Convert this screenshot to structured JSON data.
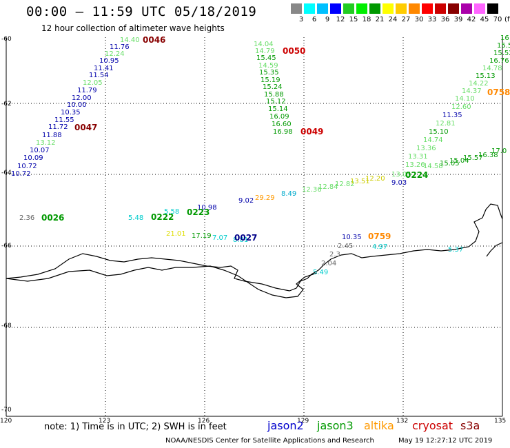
{
  "header": {
    "title": "00:00 – 11:59 UTC 05/18/2019",
    "subtitle": "12 hour collection of altimeter wave heights"
  },
  "color_scale": {
    "labels": [
      "3",
      "6",
      "9",
      "12",
      "15",
      "18",
      "21",
      "24",
      "27",
      "30",
      "33",
      "36",
      "39",
      "42",
      "45",
      "70"
    ],
    "unit": "(ft)",
    "colors": [
      "#888888",
      "#00ffff",
      "#00c0ff",
      "#0000ff",
      "#22cc22",
      "#00ee00",
      "#009900",
      "#ffff00",
      "#ffcc00",
      "#ff8800",
      "#ff0000",
      "#cc0000",
      "#880000",
      "#aa00aa",
      "#ff66ff",
      "#000000"
    ]
  },
  "axes": {
    "lat_labels": [
      "-60",
      "-62",
      "-64",
      "-66",
      "-68",
      "-70"
    ],
    "lon_labels": [
      "120",
      "123",
      "126",
      "129",
      "132",
      "135"
    ]
  },
  "passes": [
    {
      "id": "0046",
      "color": "#880000"
    },
    {
      "id": "0047",
      "color": "#880000"
    },
    {
      "id": "0049",
      "color": "#cc0000"
    },
    {
      "id": "0050",
      "color": "#cc0000"
    },
    {
      "id": "0026",
      "color": "#009900"
    },
    {
      "id": "0222",
      "color": "#009900"
    },
    {
      "id": "0223",
      "color": "#009900"
    },
    {
      "id": "0224",
      "color": "#009900"
    },
    {
      "id": "0027",
      "color": "#000088"
    },
    {
      "id": "0758",
      "color": "#ff8800"
    },
    {
      "id": "0759",
      "color": "#ff8800"
    }
  ],
  "readings": [
    {
      "v": "14.40",
      "c": "#66dd66"
    },
    {
      "v": "11.76",
      "c": "#0000aa"
    },
    {
      "v": "12.24",
      "c": "#66dd66"
    },
    {
      "v": "10.95",
      "c": "#0000aa"
    },
    {
      "v": "11.41",
      "c": "#0000aa"
    },
    {
      "v": "11.54",
      "c": "#0000aa"
    },
    {
      "v": "12.05",
      "c": "#66dd66"
    },
    {
      "v": "11.79",
      "c": "#0000aa"
    },
    {
      "v": "12.00",
      "c": "#0000aa"
    },
    {
      "v": "10.00",
      "c": "#0000aa"
    },
    {
      "v": "10.35",
      "c": "#0000aa"
    },
    {
      "v": "11.55",
      "c": "#0000aa"
    },
    {
      "v": "11.72",
      "c": "#0000aa"
    },
    {
      "v": "11.88",
      "c": "#0000aa"
    },
    {
      "v": "13.12",
      "c": "#66dd66"
    },
    {
      "v": "10.07",
      "c": "#0000aa"
    },
    {
      "v": "10.09",
      "c": "#0000aa"
    },
    {
      "v": "10.72",
      "c": "#0000aa"
    },
    {
      "v": "10.72",
      "c": "#0000aa"
    },
    {
      "v": "14.04",
      "c": "#66dd66"
    },
    {
      "v": "14.79",
      "c": "#66dd66"
    },
    {
      "v": "15.45",
      "c": "#009900"
    },
    {
      "v": "14.59",
      "c": "#66dd66"
    },
    {
      "v": "15.35",
      "c": "#009900"
    },
    {
      "v": "15.19",
      "c": "#009900"
    },
    {
      "v": "15.24",
      "c": "#009900"
    },
    {
      "v": "15.88",
      "c": "#009900"
    },
    {
      "v": "15.12",
      "c": "#009900"
    },
    {
      "v": "15.14",
      "c": "#009900"
    },
    {
      "v": "16.09",
      "c": "#009900"
    },
    {
      "v": "16.60",
      "c": "#009900"
    },
    {
      "v": "16.98",
      "c": "#009900"
    },
    {
      "v": "16",
      "c": "#009900"
    },
    {
      "v": "15.5",
      "c": "#009900"
    },
    {
      "v": "15.52",
      "c": "#009900"
    },
    {
      "v": "16.76",
      "c": "#009900"
    },
    {
      "v": "14.78",
      "c": "#66dd66"
    },
    {
      "v": "15.13",
      "c": "#009900"
    },
    {
      "v": "14.22",
      "c": "#66dd66"
    },
    {
      "v": "14.37",
      "c": "#66dd66"
    },
    {
      "v": "14.10",
      "c": "#66dd66"
    },
    {
      "v": "12.60",
      "c": "#66dd66"
    },
    {
      "v": "11.35",
      "c": "#0000aa"
    },
    {
      "v": "12.81",
      "c": "#66dd66"
    },
    {
      "v": "15.10",
      "c": "#009900"
    },
    {
      "v": "14.74",
      "c": "#66dd66"
    },
    {
      "v": "13.36",
      "c": "#66dd66"
    },
    {
      "v": "13.31",
      "c": "#66dd66"
    },
    {
      "v": "13.26",
      "c": "#66dd66"
    },
    {
      "v": "14.58",
      "c": "#66dd66"
    },
    {
      "v": "15.05",
      "c": "#009900"
    },
    {
      "v": "15.04",
      "c": "#009900"
    },
    {
      "v": "15.57",
      "c": "#009900"
    },
    {
      "v": "16.38",
      "c": "#009900"
    },
    {
      "v": "17.0",
      "c": "#009900"
    },
    {
      "v": "12.36",
      "c": "#66dd66"
    },
    {
      "v": "12.84",
      "c": "#66dd66"
    },
    {
      "v": "12.82",
      "c": "#66dd66"
    },
    {
      "v": "13.51",
      "c": "#cccc00"
    },
    {
      "v": "12.20",
      "c": "#cccc00"
    },
    {
      "v": "13.05",
      "c": "#66dd66"
    },
    {
      "v": "9.03",
      "c": "#0000aa"
    },
    {
      "v": "9.02",
      "c": "#0000aa"
    },
    {
      "v": "29.29",
      "c": "#ff9900"
    },
    {
      "v": "8.49",
      "c": "#00aacc"
    },
    {
      "v": "2.36",
      "c": "#666666"
    },
    {
      "v": "5.48",
      "c": "#00cccc"
    },
    {
      "v": "5.58",
      "c": "#00cccc"
    },
    {
      "v": "10.98",
      "c": "#0000aa"
    },
    {
      "v": "21.01",
      "c": "#dddd00"
    },
    {
      "v": "17.19",
      "c": "#009900"
    },
    {
      "v": "7.07",
      "c": "#00cccc"
    },
    {
      "v": "8.81",
      "c": "#00cccc"
    },
    {
      "v": "10.35",
      "c": "#0000aa"
    },
    {
      "v": "2.45",
      "c": "#666666"
    },
    {
      "v": "2.3",
      "c": "#666666"
    },
    {
      "v": "4.97",
      "c": "#00cccc"
    },
    {
      "v": "2.04",
      "c": "#666666"
    },
    {
      "v": "5.49",
      "c": "#00cccc"
    },
    {
      "v": "5.37",
      "c": "#00cccc"
    }
  ],
  "footer": {
    "note": "note: 1) Time is in UTC; 2) SWH is in feet",
    "legend": [
      {
        "name": "jason2",
        "color": "#0000cc"
      },
      {
        "name": "jason3",
        "color": "#009900"
      },
      {
        "name": "altika",
        "color": "#ff9900"
      },
      {
        "name": "cryosat",
        "color": "#cc0000"
      },
      {
        "name": "s3a",
        "color": "#880000"
      }
    ],
    "credit": "NOAA/NESDIS Center for Satellite Applications and Research",
    "timestamp": "May 19 12:27:12 UTC 2019"
  }
}
